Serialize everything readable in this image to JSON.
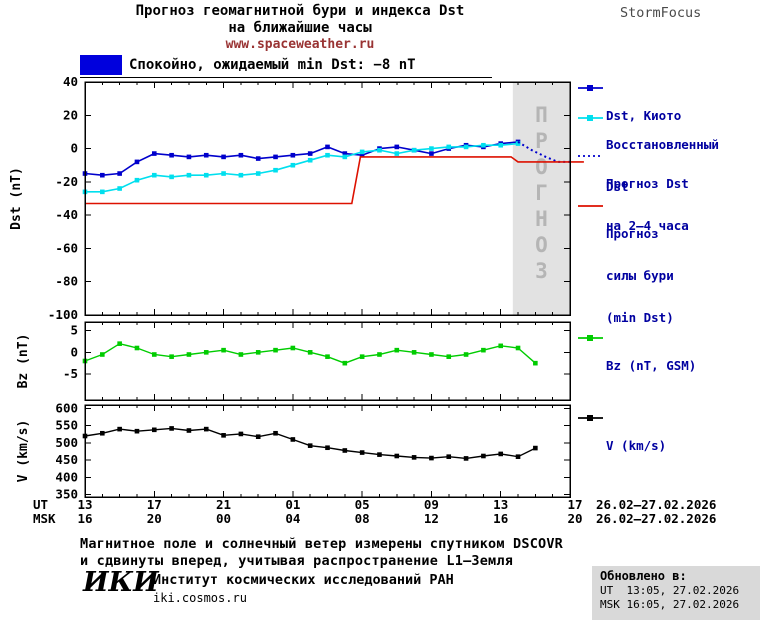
{
  "header": {
    "title_line1": "Прогноз геомагнитной бури и индекса Dst",
    "title_line2": "на ближайшие часы",
    "site_url": "www.spaceweather.ru",
    "brand": "StormFocus"
  },
  "status": {
    "label": "Спокойно, ожидаемый min Dst: −8 nT",
    "box_color": "#0000dd"
  },
  "legend_panels": {
    "dst_kyoto": "Dst, Киото",
    "restored_line1": "Восстановленный",
    "restored_line2": "Dst",
    "forecast_line1": "Прогноз Dst",
    "forecast_line2": "на 2–4 часа",
    "storm_line1": "Прогноз",
    "storm_line2": "силы бури",
    "storm_line3": "(min Dst)",
    "bz": "Bz (nT, GSM)",
    "v": "V (km/s)"
  },
  "footer": {
    "note_line1": "Магнитное поле и солнечный ветер измерены спутником DSCOVR",
    "note_line2": "и сдвинуты вперед, учитывая распространение L1–Земля",
    "logo": "ИКИ",
    "institute": "Институт космических исследований РАН",
    "institute_url": "iki.cosmos.ru",
    "updated_label": "Обновлено в:",
    "updated_ut": "UT  13:05, 27.02.2026",
    "updated_msk": "MSK 16:05, 27.02.2026"
  },
  "chart_data": {
    "type": "line",
    "title": "Прогноз геомагнитной бури и индекса Dst на ближайшие часы",
    "x_axis": {
      "unit_hours_from": "13:00 UT 26.02.2026",
      "ticks_hours": [
        0,
        4,
        8,
        12,
        16,
        20,
        24,
        28
      ],
      "labels_ut": [
        "13",
        "17",
        "21",
        "01",
        "05",
        "09",
        "13",
        "17"
      ],
      "labels_msk": [
        "16",
        "20",
        "00",
        "04",
        "08",
        "12",
        "16",
        "20"
      ],
      "row_labels": {
        "ut": "UT",
        "msk": "MSK"
      },
      "date_range": "26.02–27.02.2026"
    },
    "forecast_region": {
      "start_hour": 24.7,
      "end_hour": 28,
      "label": "ПРОГНОЗ",
      "fill": "#e2e2e2",
      "label_color": "#b5b5b5"
    },
    "panels": [
      {
        "id": "dst",
        "ylabel": "Dst (nT)",
        "ylim": [
          -100,
          40
        ],
        "yticks": [
          40,
          20,
          0,
          -20,
          -40,
          -60,
          -80,
          -100
        ],
        "series": [
          {
            "id": "dst-kyoto",
            "name": "Dst, Киото",
            "color": "#0000cc",
            "style": "solid",
            "marker": "square",
            "width": 1.6,
            "x": [
              0,
              1,
              2,
              3,
              4,
              5,
              6,
              7,
              8,
              9,
              10,
              11,
              12,
              13,
              14,
              15,
              16,
              17,
              18,
              19,
              20,
              21,
              22,
              23,
              24,
              25
            ],
            "y": [
              -15,
              -16,
              -15,
              -8,
              -3,
              -4,
              -5,
              -4,
              -5,
              -4,
              -6,
              -5,
              -4,
              -3,
              1,
              -3,
              -4,
              0,
              1,
              -1,
              -3,
              0,
              2,
              1,
              3,
              4
            ]
          },
          {
            "id": "dst-restored",
            "name": "Восстановленный Dst",
            "color": "#00dfee",
            "style": "solid",
            "marker": "square",
            "width": 1.6,
            "x": [
              0,
              1,
              2,
              3,
              4,
              5,
              6,
              7,
              8,
              9,
              10,
              11,
              12,
              13,
              14,
              15,
              16,
              17,
              18,
              19,
              20,
              21,
              22,
              23,
              24,
              25
            ],
            "y": [
              -26,
              -26,
              -24,
              -19,
              -16,
              -17,
              -16,
              -16,
              -15,
              -16,
              -15,
              -13,
              -10,
              -7,
              -4,
              -5,
              -2,
              -1,
              -3,
              -1,
              0,
              1,
              1,
              2,
              2,
              3
            ]
          },
          {
            "id": "dst-forecast",
            "name": "Прогноз Dst на 2–4 часа",
            "color": "#0000cc",
            "style": "dotted",
            "marker": "none",
            "width": 2,
            "x": [
              25,
              25.8,
              26.6,
              27.3,
              28
            ],
            "y": [
              4,
              -1,
              -5,
              -8,
              -8
            ]
          },
          {
            "id": "storm-forecast",
            "name": "Прогноз силы бури (min Dst)",
            "color": "#dd1100",
            "style": "solid",
            "marker": "none",
            "width": 1.6,
            "x": [
              0,
              15.4,
              15.9,
              24.6,
              25,
              28.8
            ],
            "y": [
              -33,
              -33,
              -5,
              -5,
              -8,
              -8
            ]
          }
        ]
      },
      {
        "id": "bz",
        "ylabel": "Bz (nT)",
        "ylim": [
          -11,
          7
        ],
        "yticks": [
          5,
          0,
          -5
        ],
        "series": [
          {
            "id": "bz",
            "name": "Bz (nT, GSM)",
            "color": "#00cc00",
            "style": "solid",
            "marker": "square",
            "width": 1.4,
            "x": [
              0,
              1,
              2,
              3,
              4,
              5,
              6,
              7,
              8,
              9,
              10,
              11,
              12,
              13,
              14,
              15,
              16,
              17,
              18,
              19,
              20,
              21,
              22,
              23,
              24,
              25,
              26
            ],
            "y": [
              -2,
              -0.5,
              2,
              1,
              -0.5,
              -1,
              -0.5,
              0,
              0.5,
              -0.5,
              0,
              0.5,
              1,
              0,
              -1,
              -2.5,
              -1,
              -0.5,
              0.5,
              0,
              -0.5,
              -1,
              -0.5,
              0.5,
              1.5,
              1,
              -2.5
            ]
          }
        ]
      },
      {
        "id": "v",
        "ylabel": "V (km/s)",
        "ylim": [
          343,
          610
        ],
        "yticks": [
          600,
          550,
          500,
          450,
          400,
          350
        ],
        "series": [
          {
            "id": "v",
            "name": "V (km/s)",
            "color": "#000000",
            "style": "solid",
            "marker": "square",
            "width": 1.4,
            "x": [
              0,
              1,
              2,
              3,
              4,
              5,
              6,
              7,
              8,
              9,
              10,
              11,
              12,
              13,
              14,
              15,
              16,
              17,
              18,
              19,
              20,
              21,
              22,
              23,
              24,
              25,
              26
            ],
            "y": [
              520,
              528,
              540,
              534,
              538,
              542,
              536,
              540,
              522,
              526,
              518,
              528,
              510,
              492,
              486,
              478,
              472,
              466,
              462,
              458,
              456,
              460,
              455,
              462,
              468,
              460,
              485
            ]
          }
        ]
      }
    ]
  }
}
